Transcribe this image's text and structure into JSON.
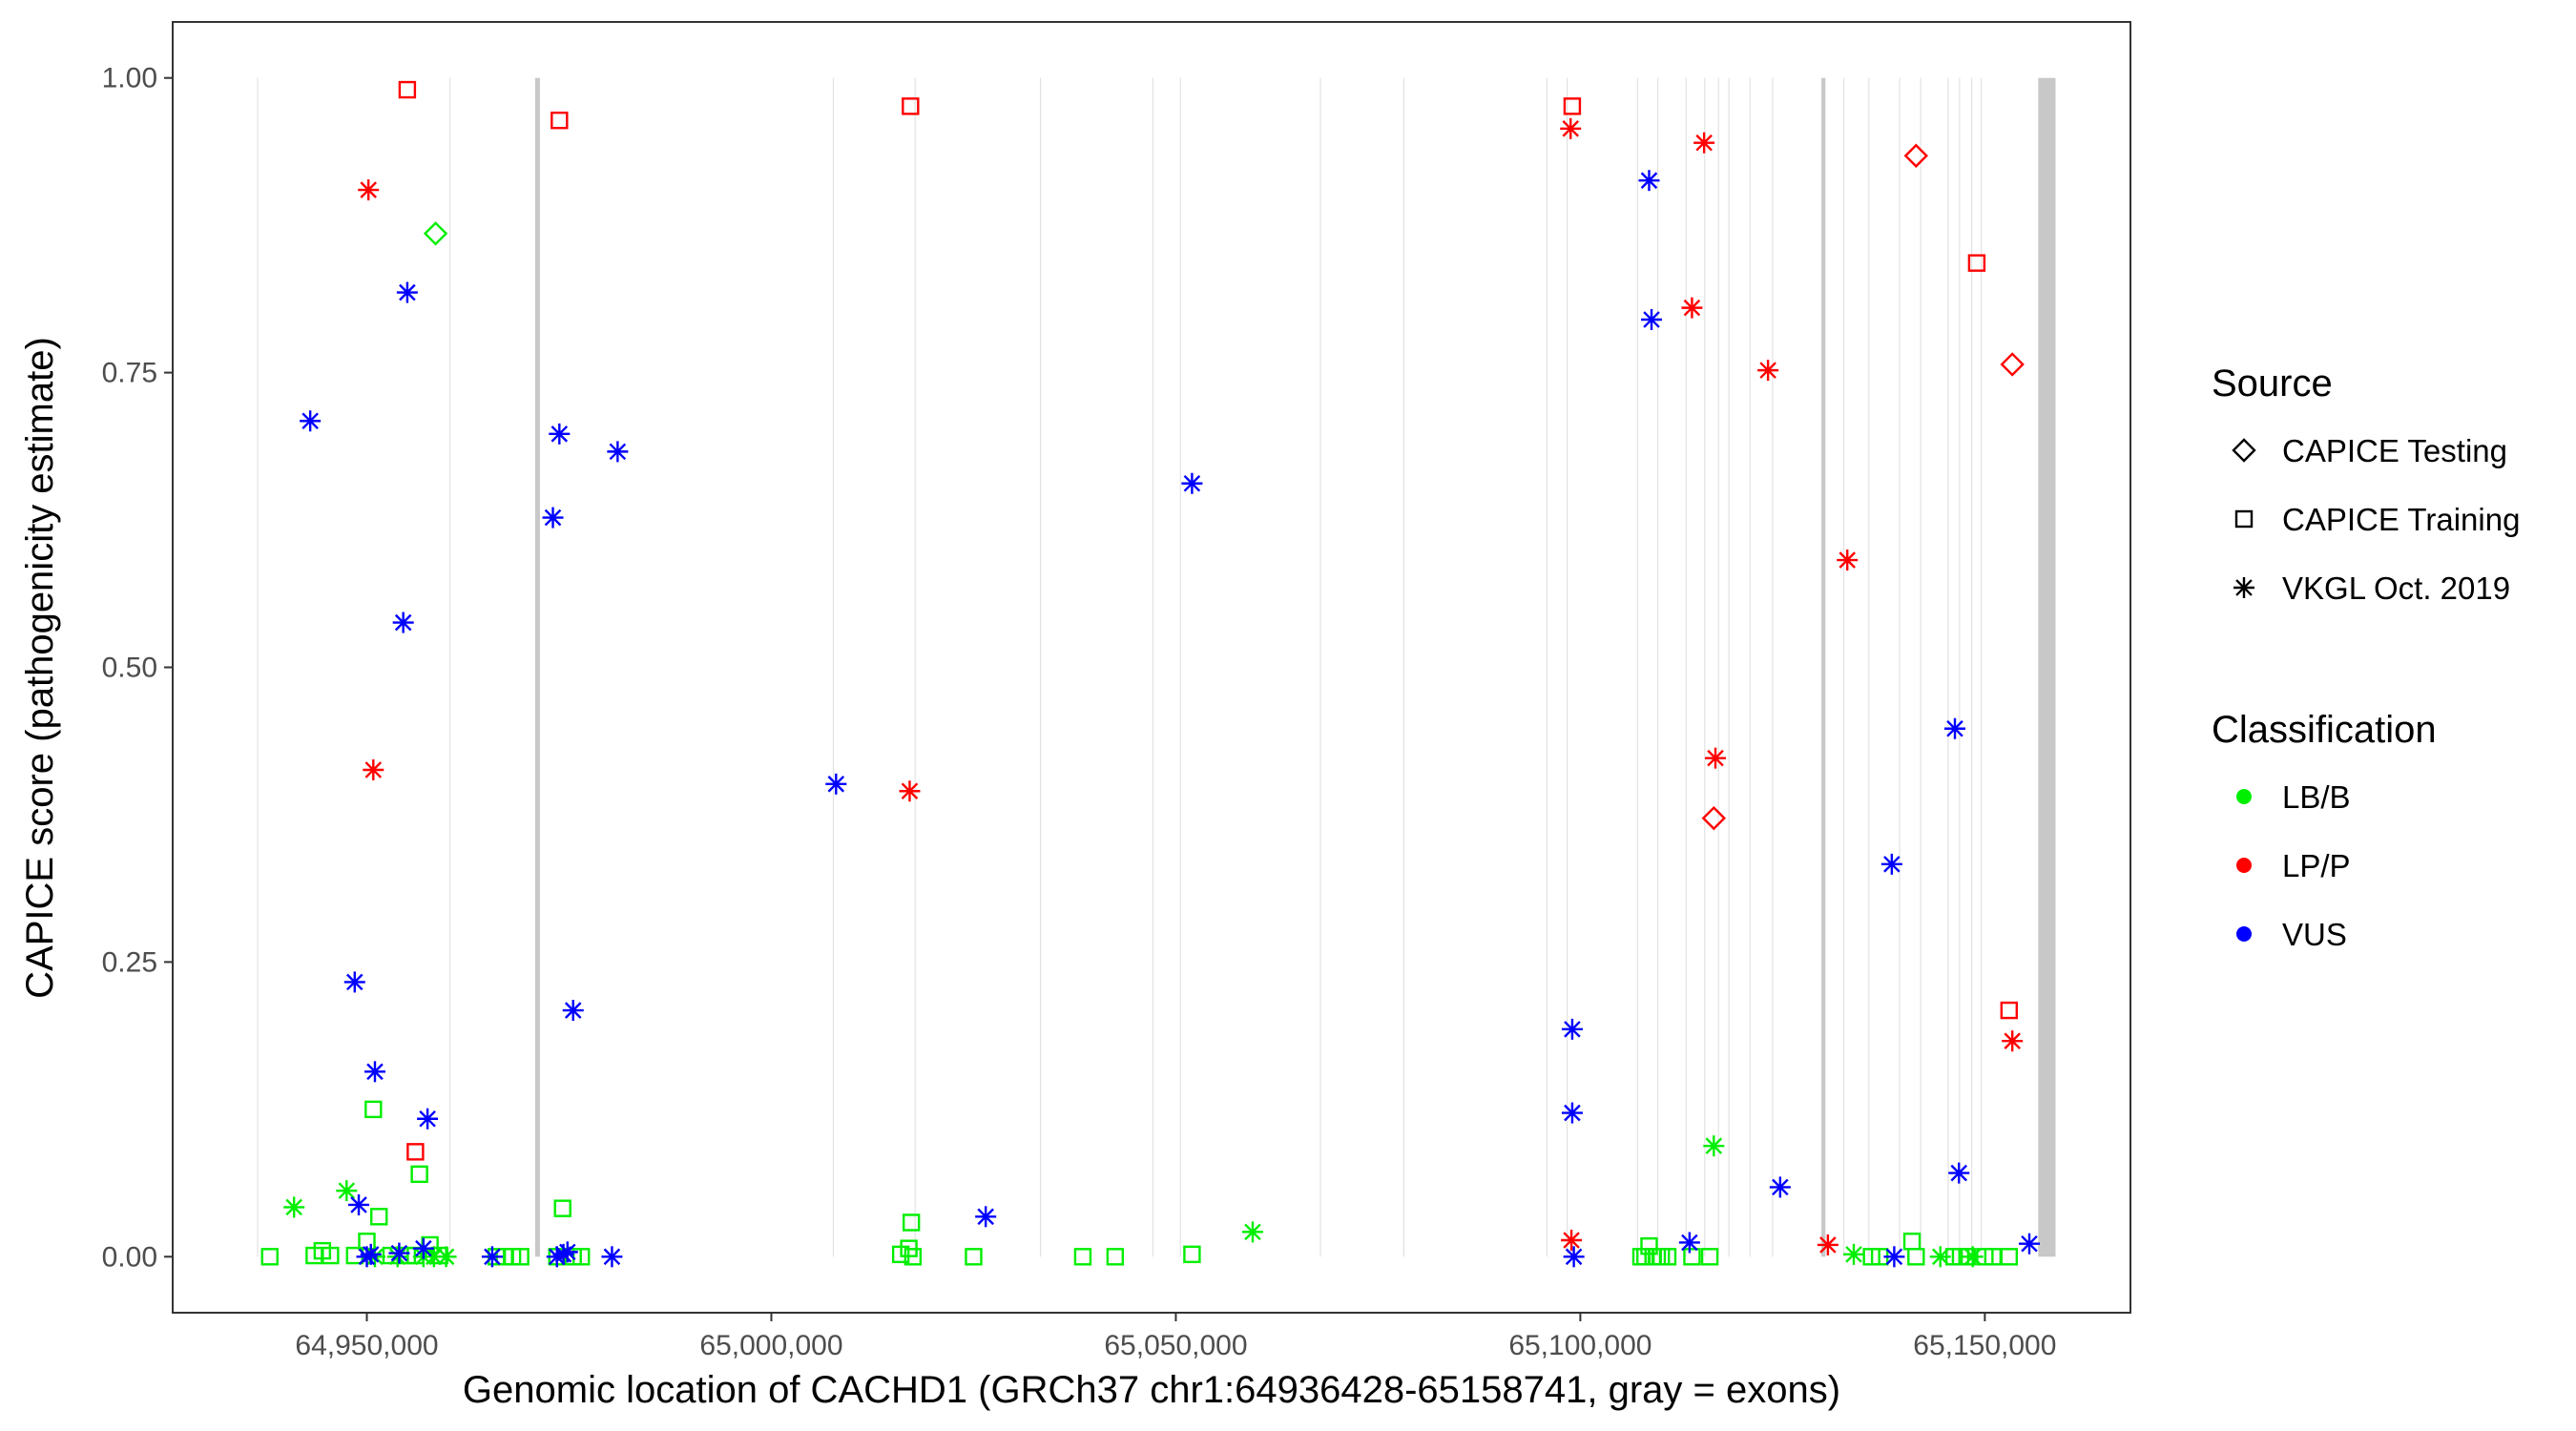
{
  "chart_data": {
    "type": "scatter",
    "title": "",
    "xlabel": "Genomic location of CACHD1 (GRCh37 chr1:64936428-65158741, gray = exons)",
    "ylabel": "CAPICE score (pathogenicity estimate)",
    "xlim": [
      64926000,
      65168000
    ],
    "ylim": [
      -0.0475,
      1.0475
    ],
    "x_ticks": [
      64950000,
      65000000,
      65050000,
      65100000,
      65150000
    ],
    "x_tick_labels": [
      "64,950,000",
      "65,000,000",
      "65,050,000",
      "65,100,000",
      "65,150,000"
    ],
    "y_ticks": [
      0,
      0.25,
      0.5,
      0.75,
      1.0
    ],
    "y_tick_labels": [
      "0.00",
      "0.25",
      "0.50",
      "0.75",
      "1.00"
    ],
    "grid": false,
    "exons": [
      {
        "start": 64936428,
        "end": 64936528
      },
      {
        "start": 64960200,
        "end": 64960300
      },
      {
        "start": 64970800,
        "end": 64971400
      },
      {
        "start": 65007600,
        "end": 65007700
      },
      {
        "start": 65017700,
        "end": 65017800
      },
      {
        "start": 65033200,
        "end": 65033300
      },
      {
        "start": 65047100,
        "end": 65047200
      },
      {
        "start": 65050500,
        "end": 65050600
      },
      {
        "start": 65067800,
        "end": 65067900
      },
      {
        "start": 65078100,
        "end": 65078200
      },
      {
        "start": 65095800,
        "end": 65095900
      },
      {
        "start": 65098300,
        "end": 65098400
      },
      {
        "start": 65107000,
        "end": 65107100
      },
      {
        "start": 65109500,
        "end": 65109600
      },
      {
        "start": 65113000,
        "end": 65113100
      },
      {
        "start": 65115300,
        "end": 65115400
      },
      {
        "start": 65117000,
        "end": 65117100
      },
      {
        "start": 65118300,
        "end": 65118400
      },
      {
        "start": 65120900,
        "end": 65121000
      },
      {
        "start": 65123700,
        "end": 65123800
      },
      {
        "start": 65129800,
        "end": 65130300
      },
      {
        "start": 65132500,
        "end": 65132600
      },
      {
        "start": 65135600,
        "end": 65135700
      },
      {
        "start": 65139400,
        "end": 65139500
      },
      {
        "start": 65142000,
        "end": 65142100
      },
      {
        "start": 65145400,
        "end": 65145500
      },
      {
        "start": 65146800,
        "end": 65146900
      },
      {
        "start": 65148300,
        "end": 65148400
      },
      {
        "start": 65149500,
        "end": 65149600
      },
      {
        "start": 65156600,
        "end": 65158741
      }
    ],
    "sources": [
      {
        "name": "CAPICE Testing",
        "shape": "diamond"
      },
      {
        "name": "CAPICE Training",
        "shape": "square"
      },
      {
        "name": "VKGL Oct. 2019",
        "shape": "asterisk"
      }
    ],
    "classifications": [
      {
        "name": "LB/B",
        "color": "#00ee00"
      },
      {
        "name": "LP/P",
        "color": "#ff0000"
      },
      {
        "name": "VUS",
        "color": "#0000ff"
      }
    ],
    "series": [
      {
        "source": "CAPICE Testing",
        "classification": "LB/B",
        "points": [
          [
            64958500,
            0.868
          ]
        ]
      },
      {
        "source": "CAPICE Testing",
        "classification": "LP/P",
        "points": [
          [
            65116500,
            0.372
          ],
          [
            65141500,
            0.934
          ],
          [
            65153400,
            0.757
          ]
        ]
      },
      {
        "source": "CAPICE Training",
        "classification": "LB/B",
        "points": [
          [
            64938000,
            0.0
          ],
          [
            64943500,
            0.001
          ],
          [
            64944500,
            0.005
          ],
          [
            64945500,
            0.001
          ],
          [
            64948500,
            0.001
          ],
          [
            64950000,
            0.013
          ],
          [
            64950800,
            0.125
          ],
          [
            64951500,
            0.034
          ],
          [
            64953000,
            0.001
          ],
          [
            64955000,
            0.001
          ],
          [
            64956000,
            0.001
          ],
          [
            64956500,
            0.07
          ],
          [
            64957800,
            0.01
          ],
          [
            64959000,
            0.001
          ],
          [
            64966000,
            0.0
          ],
          [
            64967000,
            0.0
          ],
          [
            64968000,
            0.0
          ],
          [
            64969000,
            0.0
          ],
          [
            64973500,
            0.0
          ],
          [
            64974200,
            0.041
          ],
          [
            64975500,
            0.0
          ],
          [
            64976500,
            0.0
          ],
          [
            65016000,
            0.002
          ],
          [
            65017000,
            0.007
          ],
          [
            65017300,
            0.029
          ],
          [
            65017500,
            0.0
          ],
          [
            65025000,
            0.0
          ],
          [
            65038500,
            0.0
          ],
          [
            65042500,
            0.0
          ],
          [
            65052000,
            0.002
          ],
          [
            65107500,
            0.0
          ],
          [
            65108000,
            0.0
          ],
          [
            65108500,
            0.009
          ],
          [
            65109000,
            0.0
          ],
          [
            65109500,
            0.0
          ],
          [
            65110000,
            0.0
          ],
          [
            65110800,
            0.0
          ],
          [
            65113800,
            0.0
          ],
          [
            65116000,
            0.0
          ],
          [
            65136000,
            0.0
          ],
          [
            65137000,
            0.0
          ],
          [
            65141000,
            0.013
          ],
          [
            65141500,
            0.0
          ],
          [
            65146200,
            0.0
          ],
          [
            65147000,
            0.0
          ],
          [
            65147800,
            0.0
          ],
          [
            65150000,
            0.0
          ],
          [
            65151000,
            0.0
          ],
          [
            65153000,
            0.0
          ]
        ]
      },
      {
        "source": "CAPICE Training",
        "classification": "LP/P",
        "points": [
          [
            64955000,
            0.99
          ],
          [
            64956000,
            0.089
          ],
          [
            64973800,
            0.964
          ],
          [
            65017200,
            0.976
          ],
          [
            65099000,
            0.976
          ],
          [
            65149000,
            0.843
          ],
          [
            65153000,
            0.209
          ]
        ]
      },
      {
        "source": "VKGL Oct. 2019",
        "classification": "LB/B",
        "points": [
          [
            64941000,
            0.042
          ],
          [
            64947500,
            0.056
          ],
          [
            64951000,
            0.0
          ],
          [
            64953800,
            0.0
          ],
          [
            64957000,
            0.0
          ],
          [
            64958300,
            0.0
          ],
          [
            64959800,
            0.0
          ],
          [
            65059500,
            0.021
          ],
          [
            65116500,
            0.094
          ],
          [
            65133800,
            0.002
          ],
          [
            65144500,
            0.0
          ],
          [
            65148500,
            0.0
          ]
        ]
      },
      {
        "source": "VKGL Oct. 2019",
        "classification": "LP/P",
        "points": [
          [
            64950200,
            0.905
          ],
          [
            64950800,
            0.413
          ],
          [
            65017100,
            0.395
          ],
          [
            65098800,
            0.957
          ],
          [
            65098900,
            0.014
          ],
          [
            65113800,
            0.805
          ],
          [
            65115300,
            0.945
          ],
          [
            65116700,
            0.423
          ],
          [
            65123200,
            0.752
          ],
          [
            65130600,
            0.01
          ],
          [
            65133000,
            0.591
          ],
          [
            65153400,
            0.183
          ]
        ]
      },
      {
        "source": "VKGL Oct. 2019",
        "classification": "VUS",
        "points": [
          [
            64943000,
            0.709
          ],
          [
            64948500,
            0.233
          ],
          [
            64949000,
            0.044
          ],
          [
            64950000,
            0.0
          ],
          [
            64950500,
            0.002
          ],
          [
            64951000,
            0.157
          ],
          [
            64954000,
            0.003
          ],
          [
            64954500,
            0.538
          ],
          [
            64955000,
            0.818
          ],
          [
            64957000,
            0.007
          ],
          [
            64957500,
            0.117
          ],
          [
            64965500,
            0.0
          ],
          [
            64973000,
            0.627
          ],
          [
            64973500,
            0.0
          ],
          [
            64973800,
            0.698
          ],
          [
            64974300,
            0.002
          ],
          [
            64974800,
            0.004
          ],
          [
            64975500,
            0.209
          ],
          [
            64980300,
            0.0
          ],
          [
            64981000,
            0.683
          ],
          [
            65008000,
            0.401
          ],
          [
            65026500,
            0.034
          ],
          [
            65052000,
            0.656
          ],
          [
            65099000,
            0.193
          ],
          [
            65099000,
            0.122
          ],
          [
            65099200,
            0.0
          ],
          [
            65108500,
            0.913
          ],
          [
            65108800,
            0.795
          ],
          [
            65113500,
            0.012
          ],
          [
            65124700,
            0.059
          ],
          [
            65138500,
            0.333
          ],
          [
            65138800,
            0.0
          ],
          [
            65146300,
            0.448
          ],
          [
            65146800,
            0.071
          ],
          [
            65155500,
            0.011
          ]
        ]
      }
    ],
    "legend": {
      "position": "right",
      "source_title": "Source",
      "classification_title": "Classification"
    }
  }
}
